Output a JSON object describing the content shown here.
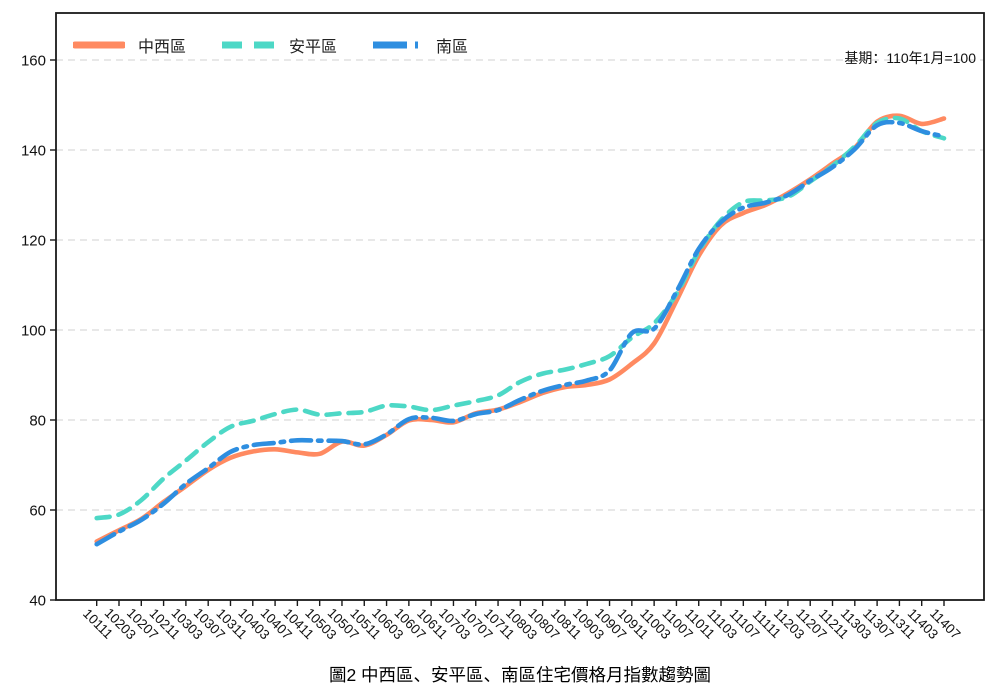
{
  "chart_data": {
    "type": "line",
    "title": "圖2 中西區、安平區、南區住宅價格月指數趨勢圖",
    "note": "基期：110年1月=100",
    "xlabel": "",
    "ylabel": "",
    "ylim": [
      40,
      170
    ],
    "yticks": [
      40,
      60,
      80,
      100,
      120,
      140,
      160
    ],
    "grid": "horizontal-dashed",
    "legend_position": "top-left-inside",
    "x_labels": [
      "10111",
      "10203",
      "10207",
      "10211",
      "10303",
      "10307",
      "10311",
      "10403",
      "10407",
      "10411",
      "10503",
      "10507",
      "10511",
      "10603",
      "10607",
      "10611",
      "10703",
      "10707",
      "10711",
      "10803",
      "10807",
      "10811",
      "10903",
      "10907",
      "10911",
      "11003",
      "11007",
      "11011",
      "11103",
      "11107",
      "11111",
      "11203",
      "11207",
      "11211",
      "11303",
      "11307",
      "11311",
      "11403",
      "11407"
    ],
    "series": [
      {
        "name": "中西區",
        "color": "#FF8A61",
        "style": "solid",
        "values": [
          53.0,
          55.5,
          58.0,
          61.8,
          65.3,
          68.9,
          71.6,
          73.0,
          73.5,
          72.8,
          72.5,
          75.2,
          74.3,
          76.7,
          79.9,
          80.0,
          79.5,
          81.5,
          82.3,
          84.0,
          86.0,
          87.3,
          87.8,
          89.0,
          92.5,
          97.0,
          106.5,
          116.5,
          123.3,
          126.0,
          127.8,
          130.4,
          133.5,
          137.0,
          140.5,
          146.3,
          147.6,
          145.8,
          147.0
        ]
      },
      {
        "name": "安平區",
        "color": "#4DD8C6",
        "style": "dashed",
        "values": [
          58.2,
          59.0,
          62.2,
          67.0,
          71.0,
          75.1,
          78.5,
          79.8,
          81.3,
          82.3,
          81.2,
          81.5,
          81.8,
          83.2,
          83.0,
          82.2,
          83.2,
          84.2,
          85.5,
          88.5,
          90.3,
          91.2,
          92.5,
          94.2,
          98.3,
          101.5,
          108.0,
          117.5,
          124.4,
          128.4,
          128.8,
          129.6,
          133.0,
          136.5,
          140.8,
          146.0,
          147.0,
          144.2,
          142.6
        ]
      },
      {
        "name": "南區",
        "color": "#2E8EE0",
        "style": "dash-dot",
        "values": [
          52.4,
          55.2,
          57.8,
          61.4,
          65.8,
          69.3,
          72.9,
          74.4,
          74.9,
          75.5,
          75.4,
          75.3,
          74.6,
          76.8,
          80.2,
          80.5,
          79.8,
          81.3,
          82.2,
          84.5,
          86.5,
          87.8,
          88.8,
          91.0,
          99.3,
          100.3,
          108.5,
          118.0,
          124.0,
          127.2,
          128.3,
          130.0,
          133.2,
          136.2,
          140.2,
          145.5,
          146.0,
          144.2,
          143.0
        ]
      }
    ],
    "axis_color": "#1a1a1a",
    "gridline_color": "#d9d9d9"
  }
}
